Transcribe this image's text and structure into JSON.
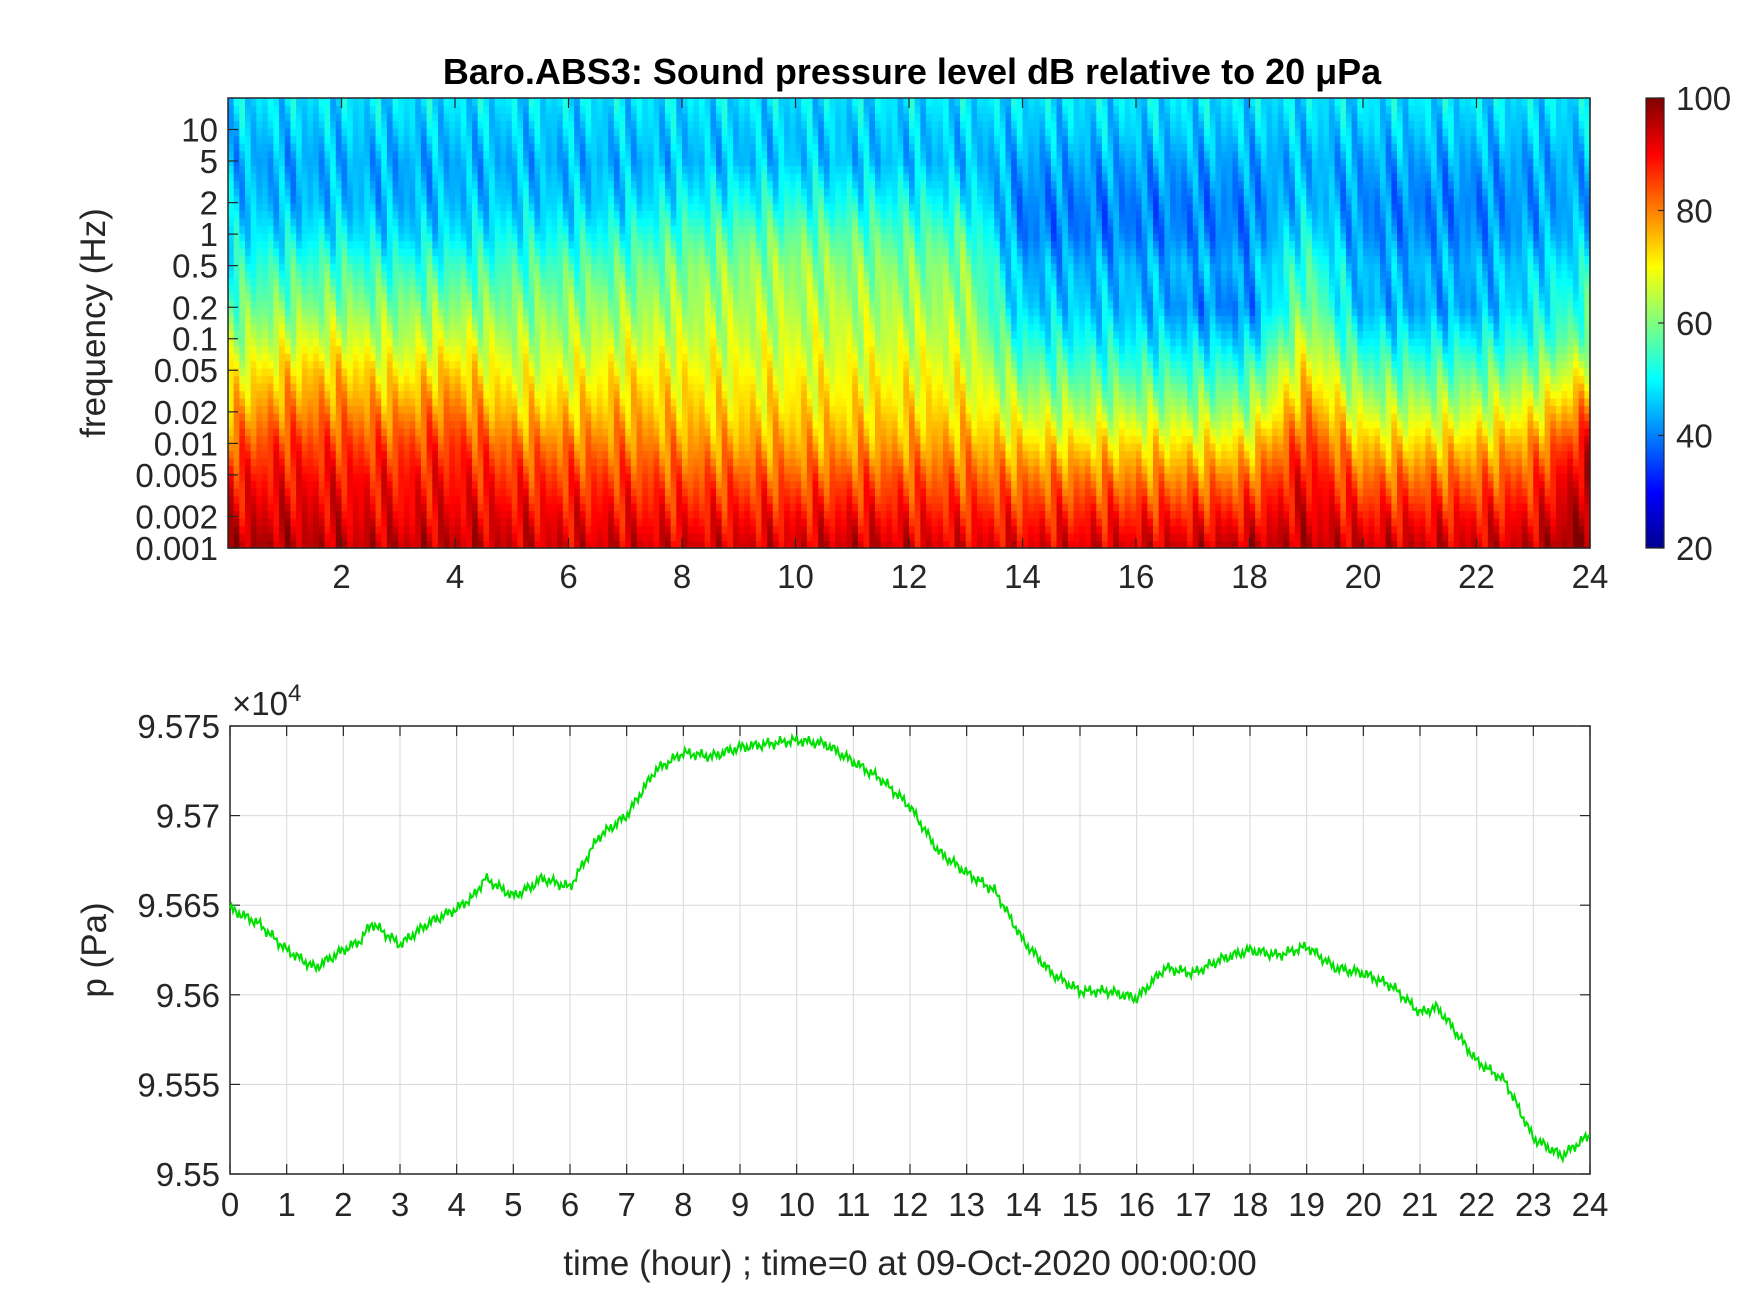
{
  "figure": {
    "top": {
      "title": "Baro.ABS3: Sound pressure level dB relative to 20 μPa",
      "ylabel": "frequency (Hz)",
      "xticks": [
        "2",
        "4",
        "6",
        "8",
        "10",
        "12",
        "14",
        "16",
        "18",
        "20",
        "22",
        "24"
      ],
      "yticks": [
        "0.001",
        "0.002",
        "0.005",
        "0.01",
        "0.02",
        "0.05",
        "0.1",
        "0.2",
        "0.5",
        "1",
        "2",
        "5",
        "10"
      ],
      "colorbar_ticks": [
        "20",
        "40",
        "60",
        "80",
        "100"
      ]
    },
    "bottom": {
      "exponent_label": "×10",
      "exponent_power": "4",
      "ylabel": "p (Pa)",
      "xlabel": "time (hour) ; time=0 at 09-Oct-2020 00:00:00",
      "xticks": [
        "0",
        "1",
        "2",
        "3",
        "4",
        "5",
        "6",
        "7",
        "8",
        "9",
        "10",
        "11",
        "12",
        "13",
        "14",
        "15",
        "16",
        "17",
        "18",
        "19",
        "20",
        "21",
        "22",
        "23",
        "24"
      ],
      "yticks": [
        "9.55",
        "9.555",
        "9.56",
        "9.565",
        "9.57",
        "9.575"
      ]
    }
  },
  "chart_data": [
    {
      "type": "heatmap",
      "title": "Baro.ABS3: Sound pressure level dB relative to 20 μPa",
      "xlabel": "",
      "ylabel": "frequency (Hz)",
      "xlim": [
        0,
        24
      ],
      "ylim": [
        0.001,
        20
      ],
      "yscale": "log",
      "colormap": "jet",
      "colorbar": {
        "range": [
          20,
          100
        ],
        "ticks": [
          20,
          40,
          60,
          80,
          100
        ],
        "placement": "right"
      },
      "x_hours": [
        0,
        1,
        2,
        3,
        4,
        5,
        6,
        7,
        8,
        9,
        10,
        11,
        12,
        13,
        14,
        15,
        16,
        17,
        18,
        19,
        20,
        21,
        22,
        23,
        24
      ],
      "y_freq_hz": [
        0.001,
        0.002,
        0.005,
        0.01,
        0.02,
        0.05,
        0.1,
        0.2,
        0.5,
        1,
        2,
        5,
        10,
        20
      ],
      "levels_db": [
        [
          97,
          92,
          88,
          82,
          76,
          68,
          62,
          58,
          52,
          48,
          46,
          44,
          46,
          48
        ],
        [
          96,
          93,
          89,
          86,
          80,
          73,
          66,
          60,
          54,
          48,
          44,
          43,
          46,
          48
        ],
        [
          95,
          92,
          89,
          85,
          80,
          74,
          67,
          61,
          55,
          49,
          45,
          44,
          46,
          48
        ],
        [
          95,
          91,
          88,
          84,
          78,
          70,
          64,
          60,
          53,
          47,
          44,
          43,
          46,
          48
        ],
        [
          95,
          92,
          89,
          86,
          81,
          74,
          67,
          61,
          54,
          48,
          45,
          44,
          46,
          48
        ],
        [
          94,
          91,
          86,
          81,
          74,
          68,
          64,
          60,
          55,
          50,
          46,
          44,
          46,
          48
        ],
        [
          93,
          90,
          85,
          80,
          74,
          68,
          64,
          61,
          56,
          50,
          46,
          44,
          46,
          48
        ],
        [
          94,
          90,
          85,
          80,
          76,
          71,
          66,
          62,
          57,
          52,
          47,
          44,
          46,
          48
        ],
        [
          93,
          89,
          83,
          78,
          74,
          70,
          66,
          63,
          60,
          55,
          50,
          45,
          46,
          48
        ],
        [
          93,
          89,
          83,
          77,
          73,
          69,
          66,
          64,
          61,
          57,
          51,
          45,
          46,
          48
        ],
        [
          93,
          89,
          82,
          77,
          73,
          69,
          66,
          64,
          62,
          58,
          52,
          46,
          46,
          48
        ],
        [
          95,
          90,
          83,
          77,
          73,
          69,
          66,
          64,
          61,
          57,
          51,
          45,
          46,
          48
        ],
        [
          93,
          89,
          83,
          77,
          73,
          69,
          66,
          63,
          60,
          56,
          51,
          45,
          46,
          48
        ],
        [
          92,
          88,
          82,
          77,
          72,
          68,
          65,
          63,
          60,
          56,
          50,
          45,
          46,
          48
        ],
        [
          92,
          87,
          80,
          73,
          66,
          58,
          52,
          46,
          44,
          40,
          40,
          43,
          46,
          48
        ],
        [
          93,
          88,
          80,
          72,
          64,
          56,
          50,
          46,
          44,
          40,
          40,
          43,
          46,
          48
        ],
        [
          93,
          88,
          79,
          72,
          64,
          55,
          49,
          45,
          44,
          40,
          40,
          43,
          46,
          48
        ],
        [
          94,
          88,
          79,
          71,
          63,
          54,
          47,
          41,
          44,
          40,
          40,
          43,
          46,
          48
        ],
        [
          95,
          89,
          80,
          72,
          63,
          54,
          46,
          40,
          43,
          40,
          40,
          43,
          46,
          48
        ],
        [
          95,
          93,
          90,
          86,
          80,
          72,
          66,
          60,
          55,
          50,
          46,
          44,
          46,
          48
        ],
        [
          94,
          89,
          81,
          74,
          66,
          57,
          50,
          44,
          44,
          41,
          41,
          43,
          46,
          48
        ],
        [
          94,
          89,
          81,
          73,
          65,
          56,
          49,
          43,
          44,
          41,
          40,
          43,
          46,
          48
        ],
        [
          93,
          89,
          81,
          74,
          66,
          57,
          50,
          43,
          44,
          41,
          40,
          43,
          46,
          48
        ],
        [
          95,
          90,
          84,
          78,
          70,
          60,
          53,
          49,
          47,
          43,
          42,
          43,
          46,
          48
        ],
        [
          100,
          98,
          95,
          90,
          82,
          70,
          60,
          55,
          50,
          46,
          44,
          44,
          46,
          48
        ]
      ]
    },
    {
      "type": "line",
      "title": "",
      "xlabel": "time (hour) ; time=0 at 09-Oct-2020 00:00:00",
      "ylabel": "p (Pa)",
      "xlim": [
        0,
        24
      ],
      "ylim": [
        95500,
        95750
      ],
      "y_exponent": 4,
      "grid": true,
      "series": [
        {
          "color": "#00e000",
          "x": [
            0,
            0.5,
            1,
            1.5,
            2,
            2.3,
            2.5,
            3,
            3.5,
            4,
            4.3,
            4.5,
            5,
            5.3,
            5.5,
            6,
            6.5,
            7,
            7.5,
            8,
            8.5,
            9,
            9.5,
            10,
            10.5,
            11,
            11.5,
            12,
            12.5,
            13,
            13.5,
            14,
            14.5,
            15,
            15.5,
            16,
            16.5,
            17,
            17.5,
            18,
            18.5,
            19,
            19.5,
            20,
            20.5,
            21,
            21.3,
            21.5,
            22,
            22.5,
            23,
            23.5,
            24
          ],
          "y": [
            95648,
            95640,
            95625,
            95615,
            95625,
            95630,
            95640,
            95628,
            95640,
            95648,
            95655,
            95665,
            95655,
            95660,
            95665,
            95660,
            95688,
            95700,
            95725,
            95735,
            95733,
            95738,
            95740,
            95742,
            95740,
            95730,
            95720,
            95705,
            95680,
            95668,
            95658,
            95630,
            95612,
            95602,
            95602,
            95598,
            95615,
            95612,
            95620,
            95625,
            95622,
            95627,
            95615,
            95612,
            95605,
            95590,
            95593,
            95585,
            95563,
            95552,
            95520,
            95510,
            95522
          ]
        }
      ]
    }
  ]
}
